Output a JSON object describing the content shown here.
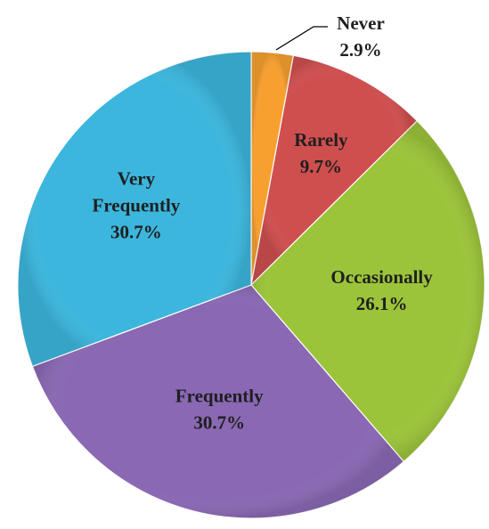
{
  "chart_data": {
    "type": "pie",
    "title": "",
    "start_angle_deg": -90,
    "direction": "clockwise",
    "slices": [
      {
        "name": "Never",
        "value": 2.9,
        "label_value": "2.9%",
        "color": "#f7a030"
      },
      {
        "name": "Rarely",
        "value": 9.7,
        "label_value": "9.7%",
        "color": "#cf4f4f"
      },
      {
        "name": "Occasionally",
        "value": 26.1,
        "label_value": "26.1%",
        "color": "#9cc43a"
      },
      {
        "name": "Frequently",
        "value": 30.7,
        "label_value": "30.7%",
        "color": "#8a68b4"
      },
      {
        "name": "Very Frequently",
        "value": 30.7,
        "label_value": "30.7%",
        "color": "#3cb6dd"
      }
    ]
  }
}
